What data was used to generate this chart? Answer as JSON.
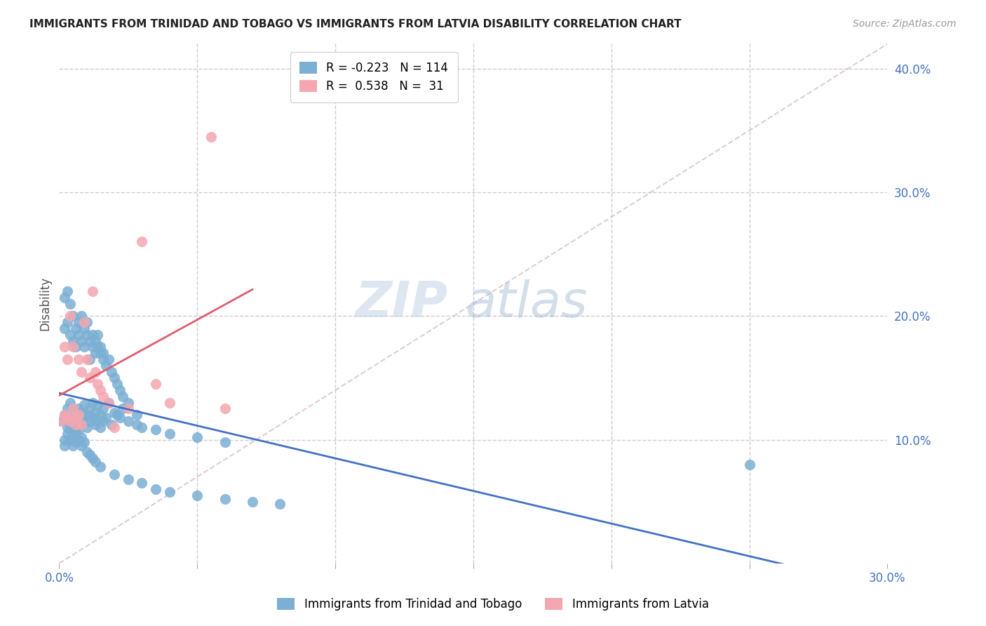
{
  "title": "IMMIGRANTS FROM TRINIDAD AND TOBAGO VS IMMIGRANTS FROM LATVIA DISABILITY CORRELATION CHART",
  "source": "Source: ZipAtlas.com",
  "ylabel": "Disability",
  "xlim": [
    0.0,
    0.3
  ],
  "ylim": [
    0.0,
    0.42
  ],
  "legend_blue_r": "-0.223",
  "legend_blue_n": "114",
  "legend_pink_r": "0.538",
  "legend_pink_n": "31",
  "legend_label_blue": "Immigrants from Trinidad and Tobago",
  "legend_label_pink": "Immigrants from Latvia",
  "blue_color": "#7bafd4",
  "pink_color": "#f4a7b0",
  "trend_blue_color": "#4472c4",
  "trend_pink_color": "#e05c6e",
  "watermark_zip": "ZIP",
  "watermark_atlas": "atlas",
  "blue_scatter_x": [
    0.001,
    0.002,
    0.003,
    0.003,
    0.004,
    0.004,
    0.005,
    0.005,
    0.005,
    0.006,
    0.006,
    0.007,
    0.007,
    0.007,
    0.008,
    0.008,
    0.009,
    0.009,
    0.01,
    0.01,
    0.011,
    0.011,
    0.012,
    0.012,
    0.013,
    0.013,
    0.014,
    0.014,
    0.015,
    0.015,
    0.016,
    0.016,
    0.017,
    0.018,
    0.019,
    0.02,
    0.021,
    0.022,
    0.023,
    0.025,
    0.028,
    0.03,
    0.035,
    0.04,
    0.05,
    0.06,
    0.002,
    0.003,
    0.004,
    0.005,
    0.005,
    0.006,
    0.006,
    0.007,
    0.007,
    0.008,
    0.008,
    0.009,
    0.009,
    0.01,
    0.01,
    0.011,
    0.011,
    0.012,
    0.012,
    0.013,
    0.013,
    0.014,
    0.014,
    0.015,
    0.015,
    0.016,
    0.016,
    0.017,
    0.018,
    0.019,
    0.02,
    0.021,
    0.022,
    0.023,
    0.025,
    0.028,
    0.002,
    0.002,
    0.003,
    0.003,
    0.004,
    0.004,
    0.005,
    0.005,
    0.006,
    0.006,
    0.007,
    0.007,
    0.008,
    0.008,
    0.009,
    0.01,
    0.011,
    0.012,
    0.013,
    0.015,
    0.02,
    0.025,
    0.03,
    0.035,
    0.04,
    0.05,
    0.06,
    0.07,
    0.08,
    0.25,
    0.002,
    0.003,
    0.004
  ],
  "blue_scatter_y": [
    0.115,
    0.12,
    0.118,
    0.125,
    0.112,
    0.13,
    0.108,
    0.115,
    0.122,
    0.11,
    0.118,
    0.113,
    0.12,
    0.125,
    0.115,
    0.122,
    0.118,
    0.128,
    0.11,
    0.12,
    0.115,
    0.125,
    0.118,
    0.13,
    0.112,
    0.122,
    0.115,
    0.128,
    0.11,
    0.12,
    0.115,
    0.125,
    0.118,
    0.13,
    0.112,
    0.122,
    0.12,
    0.118,
    0.125,
    0.115,
    0.112,
    0.11,
    0.108,
    0.105,
    0.102,
    0.098,
    0.19,
    0.195,
    0.185,
    0.18,
    0.2,
    0.175,
    0.19,
    0.185,
    0.195,
    0.18,
    0.2,
    0.175,
    0.19,
    0.185,
    0.195,
    0.18,
    0.165,
    0.175,
    0.185,
    0.17,
    0.18,
    0.175,
    0.185,
    0.17,
    0.175,
    0.165,
    0.17,
    0.16,
    0.165,
    0.155,
    0.15,
    0.145,
    0.14,
    0.135,
    0.13,
    0.12,
    0.095,
    0.1,
    0.105,
    0.11,
    0.1,
    0.108,
    0.095,
    0.102,
    0.098,
    0.105,
    0.1,
    0.108,
    0.095,
    0.102,
    0.098,
    0.09,
    0.088,
    0.085,
    0.082,
    0.078,
    0.072,
    0.068,
    0.065,
    0.06,
    0.058,
    0.055,
    0.052,
    0.05,
    0.048,
    0.08,
    0.215,
    0.22,
    0.21
  ],
  "pink_scatter_x": [
    0.001,
    0.002,
    0.002,
    0.003,
    0.003,
    0.004,
    0.004,
    0.005,
    0.005,
    0.006,
    0.006,
    0.007,
    0.007,
    0.008,
    0.008,
    0.009,
    0.01,
    0.011,
    0.012,
    0.013,
    0.014,
    0.015,
    0.016,
    0.018,
    0.02,
    0.025,
    0.03,
    0.035,
    0.04,
    0.055,
    0.06
  ],
  "pink_scatter_y": [
    0.115,
    0.12,
    0.175,
    0.165,
    0.118,
    0.115,
    0.2,
    0.175,
    0.125,
    0.118,
    0.112,
    0.165,
    0.12,
    0.155,
    0.112,
    0.195,
    0.165,
    0.15,
    0.22,
    0.155,
    0.145,
    0.14,
    0.135,
    0.13,
    0.11,
    0.125,
    0.26,
    0.145,
    0.13,
    0.345,
    0.125
  ]
}
